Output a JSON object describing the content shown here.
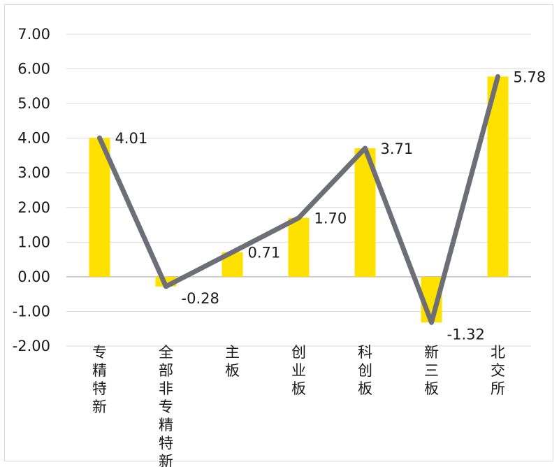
{
  "chart_data": {
    "type": "bar+line",
    "categories": [
      "专精特新",
      "全部非专精特新",
      "主板",
      "创业板",
      "科创板",
      "新三板",
      "北交所"
    ],
    "values": [
      4.01,
      -0.28,
      0.71,
      1.7,
      3.71,
      -1.32,
      5.78
    ],
    "data_labels": [
      "4.01",
      "-0.28",
      "0.71",
      "1.70",
      "3.71",
      "-1.32",
      "5.78"
    ],
    "y_ticks": [
      "7.00",
      "6.00",
      "5.00",
      "4.00",
      "3.00",
      "2.00",
      "1.00",
      "0.00",
      "-1.00",
      "-2.00"
    ],
    "ylim": [
      -2,
      7
    ],
    "grid": true,
    "legend": "none",
    "title": "",
    "xlabel": "",
    "ylabel": "",
    "colors": {
      "bar": "#ffe100",
      "line": "#6e6e78",
      "grid": "#d9d9d9",
      "axis": "#bfbfbf"
    }
  }
}
